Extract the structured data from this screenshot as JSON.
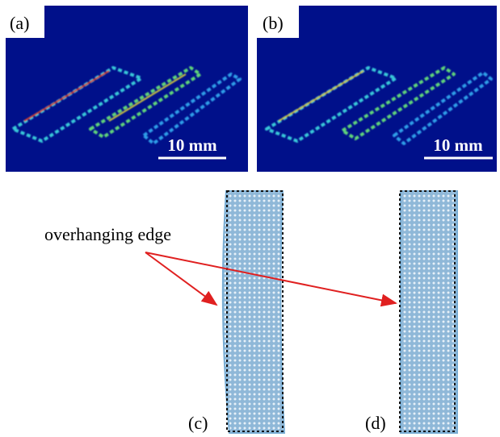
{
  "panels": [
    {
      "label": "(a)",
      "scale": "10 mm"
    },
    {
      "label": "(b)",
      "scale": "10 mm"
    },
    {
      "label": "(c)"
    },
    {
      "label": "(d)"
    }
  ],
  "annotation": "overhanging edge"
}
